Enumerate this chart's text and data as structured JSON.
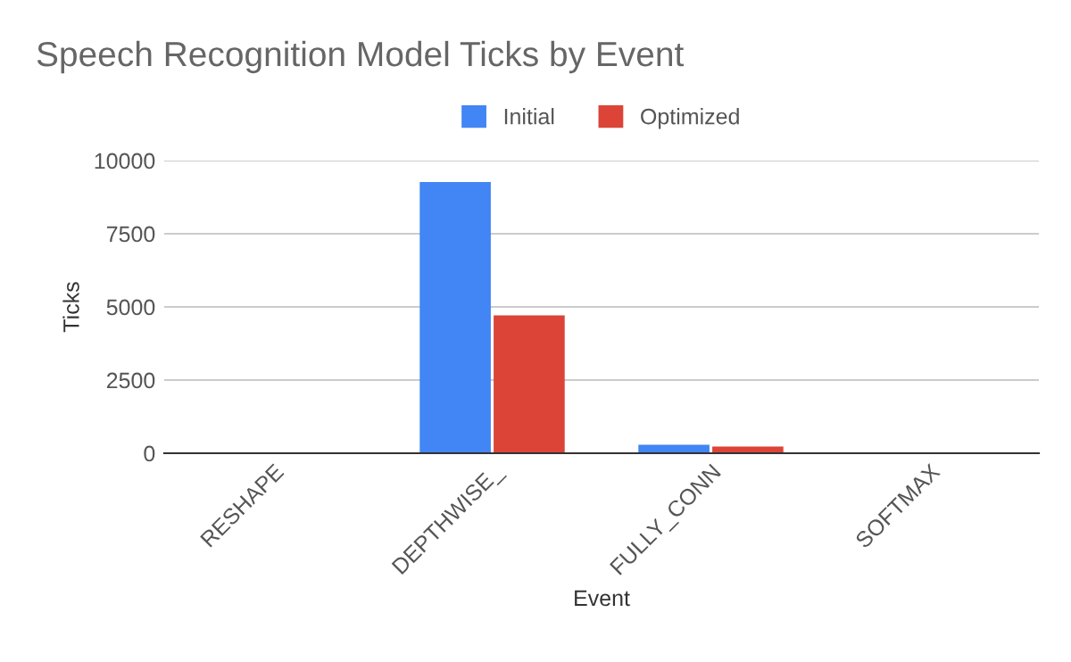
{
  "chart_data": {
    "type": "bar",
    "title": "Speech Recognition Model Ticks by Event",
    "xlabel": "Event",
    "ylabel": "Ticks",
    "categories": [
      "RESHAPE",
      "DEPTHWISE_",
      "FULLY_CONN",
      "SOFTMAX"
    ],
    "series": [
      {
        "name": "Initial",
        "color": "#4285f4",
        "values": [
          0,
          9270,
          290,
          0
        ]
      },
      {
        "name": "Optimized",
        "color": "#db4437",
        "values": [
          0,
          4710,
          230,
          0
        ]
      }
    ],
    "ylim": [
      0,
      10000
    ],
    "yticks": [
      0,
      2500,
      5000,
      7500,
      10000
    ],
    "grid": "y",
    "legend": "top"
  }
}
